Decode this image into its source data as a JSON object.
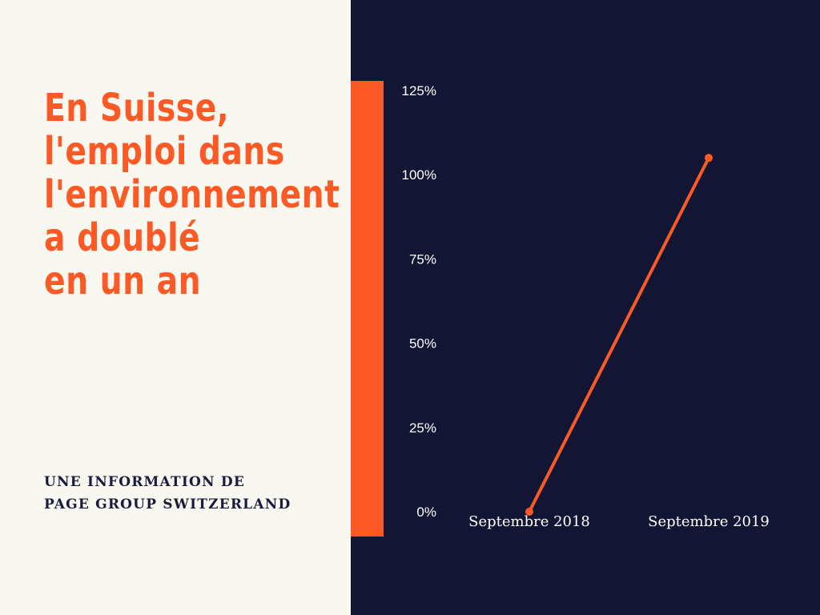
{
  "headline": {
    "lines": [
      "En Suisse,",
      "l'emploi dans",
      "l'environnement",
      "a doublé",
      "en un an"
    ]
  },
  "source": {
    "lines": [
      "UNE INFORMATION DE",
      "PAGE GROUP SWITZERLAND"
    ]
  },
  "colors": {
    "accent": "#fb5a26",
    "dark_bg": "#131535",
    "light_bg": "#f9f8f0",
    "source_text": "#181a3e"
  },
  "chart_data": {
    "type": "line",
    "categories": [
      "Septembre 2018",
      "Septembre 2019"
    ],
    "series": [
      {
        "values": [
          0,
          105
        ]
      }
    ],
    "y_ticks": [
      "0%",
      "25%",
      "50%",
      "75%",
      "100%",
      "125%"
    ],
    "ylim": [
      0,
      125
    ],
    "grid": false,
    "legend": "none"
  }
}
